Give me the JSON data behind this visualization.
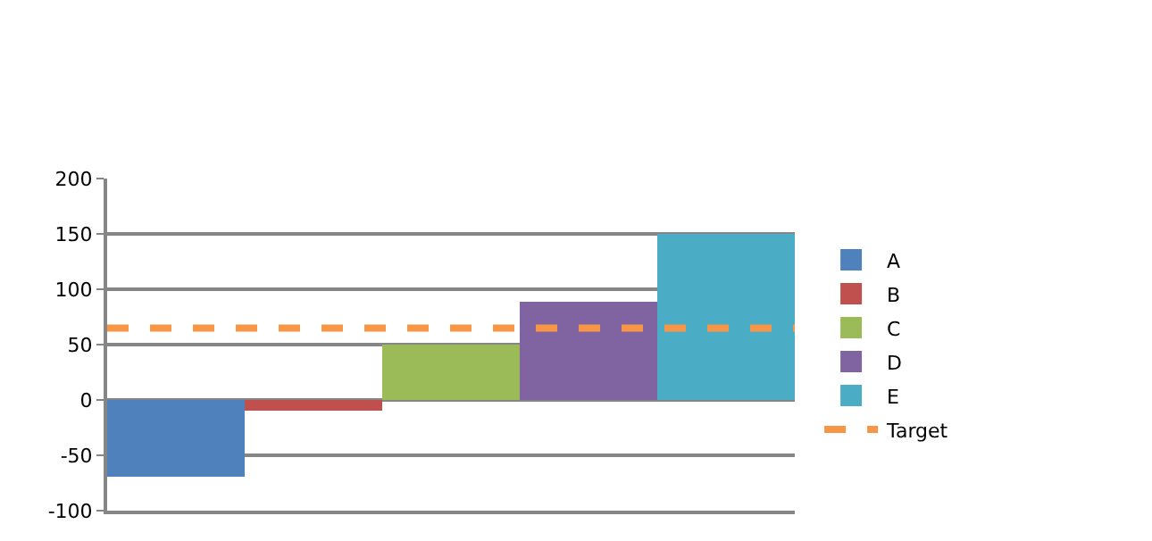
{
  "chart_data": {
    "type": "bar",
    "categories": [
      null,
      null,
      null,
      null,
      null
    ],
    "series": [
      {
        "name": "A",
        "color": "#4f81bd",
        "values": [
          -70,
          null,
          null,
          null,
          null
        ]
      },
      {
        "name": "B",
        "color": "#c0504d",
        "values": [
          null,
          -10,
          null,
          null,
          null
        ]
      },
      {
        "name": "C",
        "color": "#9bbb59",
        "values": [
          null,
          null,
          50,
          null,
          null
        ]
      },
      {
        "name": "D",
        "color": "#8064a2",
        "values": [
          null,
          null,
          null,
          88,
          null
        ]
      },
      {
        "name": "E",
        "color": "#4bacc6",
        "values": [
          null,
          null,
          null,
          null,
          150
        ]
      }
    ],
    "ylim": [
      -100,
      200
    ],
    "yticks": [
      -100,
      -50,
      0,
      50,
      100,
      150,
      200
    ],
    "ref_lines": [
      {
        "axis": "y",
        "value": 65,
        "label": "Target",
        "color": "#f79646",
        "line_style": "dashed"
      }
    ],
    "grid": "y",
    "legend": "right",
    "tick_labels": "y"
  }
}
